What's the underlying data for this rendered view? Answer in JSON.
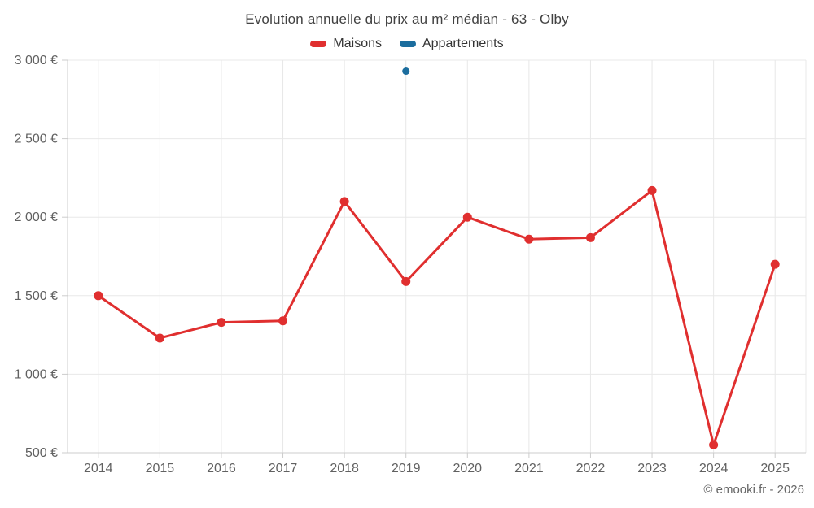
{
  "chart_data": {
    "type": "line",
    "title": "Evolution annuelle du prix au m² médian - 63 - Olby",
    "x": [
      "2014",
      "2015",
      "2016",
      "2017",
      "2018",
      "2019",
      "2020",
      "2021",
      "2022",
      "2023",
      "2024",
      "2025"
    ],
    "series": [
      {
        "name": "Maisons",
        "color": "#e02f2f",
        "marker_radius": 5.5,
        "values": [
          1500,
          1230,
          1330,
          1340,
          2100,
          1590,
          2000,
          1860,
          1870,
          2170,
          550,
          1700
        ]
      },
      {
        "name": "Appartements",
        "color": "#1b6d9e",
        "marker_radius": 4.5,
        "values": [
          null,
          null,
          null,
          null,
          null,
          2930,
          null,
          null,
          null,
          null,
          null,
          null
        ]
      }
    ],
    "ylim": [
      500,
      3000
    ],
    "yticks": [
      500,
      1000,
      1500,
      2000,
      2500,
      3000
    ],
    "ytick_labels": [
      "500 €",
      "1 000 €",
      "1 500 €",
      "2 000 €",
      "2 500 €",
      "3 000 €"
    ],
    "xlabel": "",
    "ylabel": "",
    "grid": true,
    "legend_position": "top",
    "colors": {
      "grid": "#e8e8e8",
      "axis": "#cccccc",
      "tick_text": "#616161",
      "title_text": "#424242"
    },
    "attribution": "© emooki.fr - 2026"
  }
}
